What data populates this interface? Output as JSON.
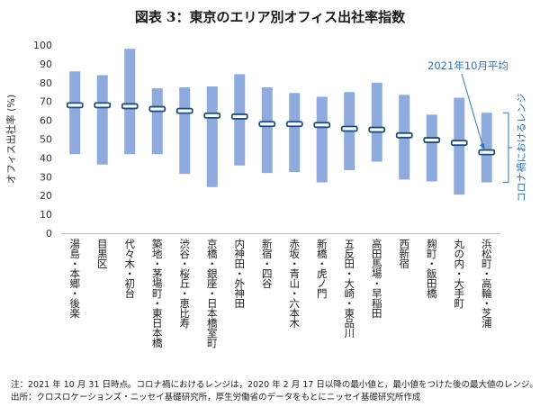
{
  "title": "図表 3：東京のエリア別オフィス出社率指数",
  "chart_data": {
    "type": "bar",
    "subtype": "floating-range-with-marker",
    "ylabel": "オフィス出社率 (%)",
    "ylim": [
      0,
      100
    ],
    "yticks": [
      0,
      10,
      20,
      30,
      40,
      50,
      60,
      70,
      80,
      90,
      100
    ],
    "categories": [
      "湯島・本郷・後楽",
      "目黒区",
      "代々木・初台",
      "築地・茅場町・東日本橋",
      "渋谷・桜丘・恵比寿",
      "京橋・銀座・日本橋室町",
      "内神田・外神田",
      "新宿・四谷",
      "赤坂・青山・六本木",
      "新橋・虎ノ門",
      "五反田・大崎・東品川",
      "高田馬場・早稲田",
      "西新宿",
      "麹町・飯田橋",
      "丸の内・大手町",
      "浜松町・高輪・芝浦"
    ],
    "range_min": [
      42,
      36.5,
      42,
      42,
      31.5,
      24.5,
      36,
      32,
      32.5,
      27,
      33.5,
      38,
      28.5,
      27.5,
      20.5,
      27
    ],
    "range_max": [
      86,
      84,
      98,
      77,
      77.5,
      78,
      84.5,
      77.5,
      74.5,
      72.5,
      75,
      80,
      73.5,
      63,
      72,
      64
    ],
    "oct_avg": [
      68,
      68,
      67.5,
      66,
      65,
      62.5,
      62,
      58,
      58,
      57.5,
      55.5,
      55,
      52,
      49.5,
      48,
      43
    ],
    "grid": false,
    "colors": {
      "range_bar": "#8faadc",
      "marker_fill": "#ffffff",
      "marker_stroke": "#1f4e79",
      "annotation": "#2e75b6"
    },
    "annotations": {
      "avg_label": "2021年10月平均",
      "range_label": "コロナ禍におけるレンジ"
    }
  },
  "notes": {
    "line1": "注：2021 年 10 月 31 日時点。コロナ禍におけるレンジは，2020 年 2 月 17 日以降の最小値と，最小値をつけた後の最大値のレンジ。",
    "line2": "出所：クロスロケーションズ・ニッセイ基礎研究所，厚生労働省のデータをもとにニッセイ基礎研究所作成"
  }
}
